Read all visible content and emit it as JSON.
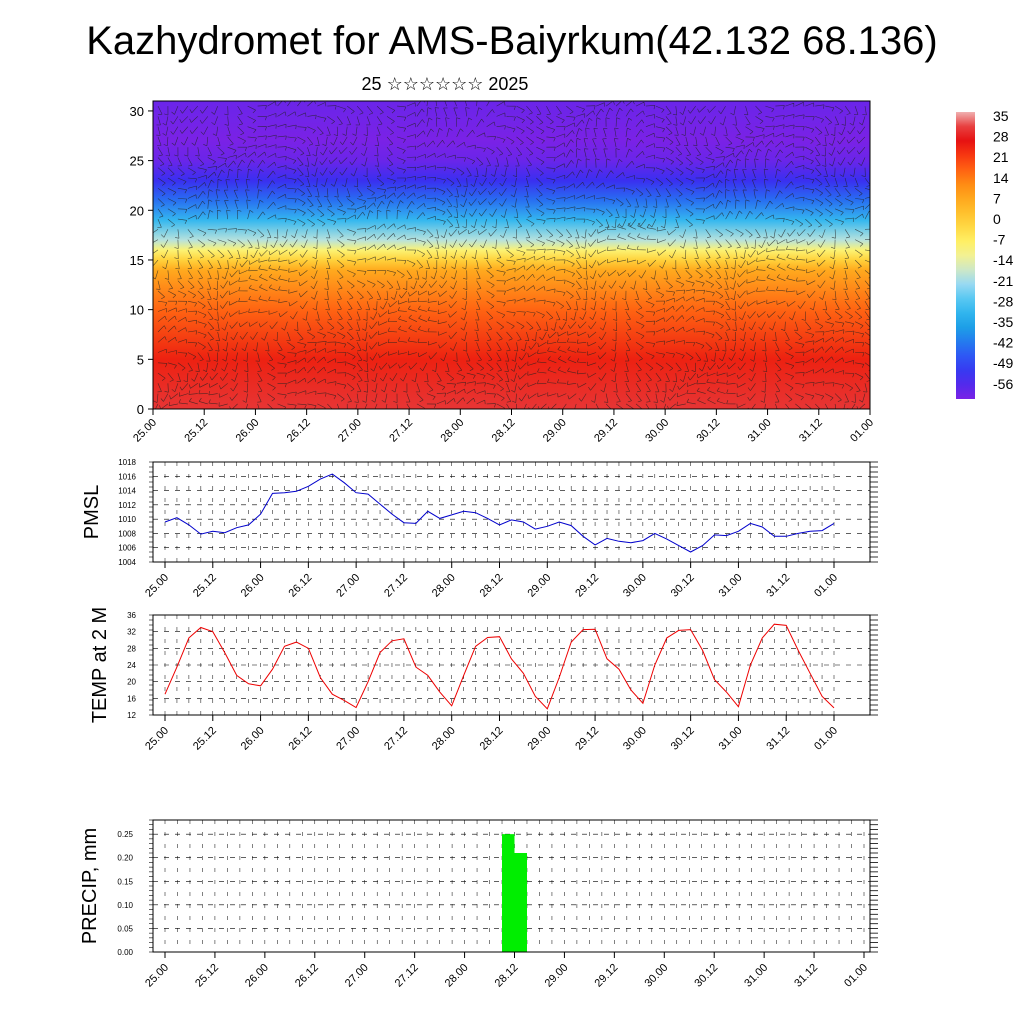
{
  "title": "Kazhydromet for AMS-Baiyrkum(42.132 68.136)",
  "subtitle": "25 ☆☆☆☆☆☆ 2025",
  "time_labels": [
    "25.00",
    "25.12",
    "26.00",
    "26.12",
    "27.00",
    "27.12",
    "28.00",
    "28.12",
    "29.00",
    "29.12",
    "30.00",
    "30.12",
    "31.00",
    "31.12",
    "01.00"
  ],
  "chart_data": [
    {
      "type": "heatmap",
      "name": "vertical-cross-section",
      "y_ticks": [
        0,
        5,
        10,
        15,
        20,
        25,
        30
      ],
      "ylim": [
        0,
        31
      ],
      "colorbar": {
        "labels": [
          "35",
          "28",
          "21",
          "14",
          "7",
          "0",
          "-7",
          "-14",
          "-21",
          "-28",
          "-35",
          "-42",
          "-49",
          "-56"
        ],
        "range": [
          -60,
          38
        ]
      },
      "profile": {
        "heights": [
          0,
          5,
          10,
          14,
          15,
          16,
          17,
          19,
          21,
          23,
          25,
          27,
          31
        ],
        "temps": [
          32,
          26,
          18,
          8,
          0,
          -8,
          -18,
          -30,
          -42,
          -52,
          -58,
          -60,
          -58
        ]
      },
      "has_wind_barbs": true
    },
    {
      "type": "line",
      "ylabel": "PMSL",
      "y_ticks": [
        1004,
        1006,
        1008,
        1010,
        1012,
        1014,
        1016,
        1018
      ],
      "ylim": [
        1004,
        1018
      ],
      "color": "#0000cc",
      "values": [
        1009.6,
        1010.2,
        1009.2,
        1007.9,
        1008.3,
        1008.1,
        1008.8,
        1009.2,
        1010.7,
        1013.6,
        1013.7,
        1013.9,
        1014.6,
        1015.6,
        1016.3,
        1015.1,
        1013.7,
        1013.5,
        1012.1,
        1010.7,
        1009.5,
        1009.4,
        1011.1,
        1010.1,
        1010.6,
        1011.1,
        1010.9,
        1010.1,
        1009.2,
        1009.9,
        1009.6,
        1008.6,
        1009.0,
        1009.6,
        1009.1,
        1007.6,
        1006.4,
        1007.3,
        1006.9,
        1006.7,
        1007.0,
        1008.0,
        1007.2,
        1006.3,
        1005.4,
        1006.3,
        1007.8,
        1007.7,
        1008.3,
        1009.4,
        1008.9,
        1007.6,
        1007.6,
        1008.0,
        1008.3,
        1008.4,
        1009.4
      ]
    },
    {
      "type": "line",
      "ylabel": "TEMP at 2 M",
      "y_ticks": [
        12,
        16,
        20,
        24,
        28,
        32,
        36
      ],
      "ylim": [
        12,
        36
      ],
      "color": "#ee0000",
      "values": [
        17.0,
        23.5,
        30.5,
        33.0,
        32.0,
        27.0,
        21.5,
        19.5,
        19.0,
        23.0,
        28.5,
        29.5,
        28.0,
        21.0,
        17.0,
        15.5,
        13.8,
        20.0,
        27.0,
        29.8,
        30.3,
        23.5,
        21.5,
        17.5,
        14.2,
        21.5,
        28.5,
        30.6,
        30.8,
        25.5,
        22.0,
        16.5,
        13.5,
        21.0,
        29.5,
        32.5,
        32.6,
        25.5,
        23.0,
        18.0,
        14.8,
        24.0,
        30.5,
        32.3,
        32.5,
        27.5,
        20.5,
        17.5,
        14.0,
        24.0,
        30.5,
        33.8,
        33.5,
        27.5,
        22.0,
        16.5,
        13.7
      ]
    },
    {
      "type": "bar",
      "ylabel": "PRECIP, mm",
      "y_ticks": [
        "0.00",
        "0.05",
        "0.10",
        "0.15",
        "0.20",
        "0.25"
      ],
      "ylim": [
        0,
        0.28
      ],
      "color": "#00ee00",
      "bars": [
        {
          "x": 27.5,
          "value": 0.25
        },
        {
          "x": 28.5,
          "value": 0.21
        }
      ]
    }
  ]
}
